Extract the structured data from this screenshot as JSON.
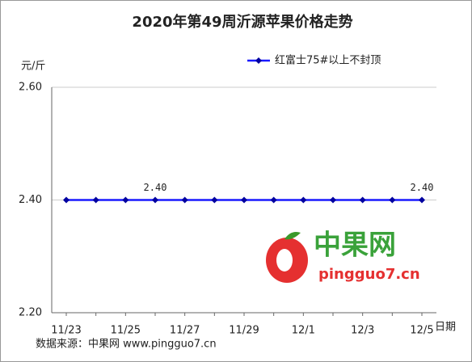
{
  "chart_data": {
    "type": "line",
    "title": "2020年第49周沂源苹果价格走势",
    "ylabel": "元/斤",
    "xlabel": "日期",
    "categories": [
      "11/23",
      null,
      "11/25",
      null,
      "11/27",
      null,
      "11/29",
      null,
      "12/1",
      null,
      "12/3",
      null,
      "12/5"
    ],
    "series": [
      {
        "name": "红富士75#以上不封顶",
        "color": "#1a1aff",
        "values": [
          2.4,
          2.4,
          2.4,
          2.4,
          2.4,
          2.4,
          2.4,
          2.4,
          2.4,
          2.4,
          2.4,
          2.4,
          2.4
        ],
        "value_labels": [
          null,
          null,
          null,
          "2.40",
          null,
          null,
          null,
          null,
          null,
          null,
          null,
          null,
          "2.40"
        ]
      }
    ],
    "ylim": [
      2.2,
      2.6
    ],
    "yticks": [
      {
        "value": 2.2,
        "label": "2.20"
      },
      {
        "value": 2.4,
        "label": "2.40"
      },
      {
        "value": 2.6,
        "label": "2.60"
      }
    ],
    "grid": true,
    "legend": "top-right",
    "source": "数据来源：中果网 www.pingguo7.cn",
    "watermark": {
      "name": "中果网",
      "url": "pingguo7.cn"
    }
  }
}
